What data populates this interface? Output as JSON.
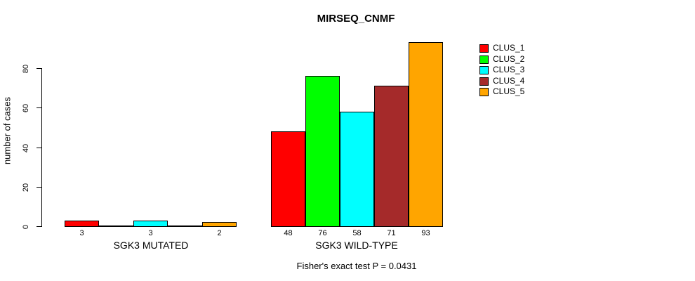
{
  "page": {
    "background": "#ffffff"
  },
  "chart_data": {
    "type": "bar",
    "title": "MIRSEQ_CNMF",
    "ylabel": "number of cases",
    "xlabel": "",
    "annotation": "Fisher's exact test P = 0.0431",
    "series": [
      "CLUS_1",
      "CLUS_2",
      "CLUS_3",
      "CLUS_4",
      "CLUS_5"
    ],
    "series_colors": [
      "#FF0000",
      "#00FF00",
      "#00FFFF",
      "#A52A2A",
      "#FFA500"
    ],
    "categories": [
      "SGK3 MUTATED",
      "SGK3 WILD-TYPE"
    ],
    "groups": [
      {
        "label": "SGK3 MUTATED",
        "values": [
          3,
          0,
          3,
          0,
          2
        ]
      },
      {
        "label": "SGK3 WILD-TYPE",
        "values": [
          48,
          76,
          58,
          71,
          93
        ]
      }
    ],
    "bar_value_labels": [
      [
        "3",
        "",
        "3",
        "",
        "2"
      ],
      [
        "48",
        "76",
        "58",
        "71",
        "93"
      ]
    ],
    "yticks": [
      0,
      20,
      40,
      60,
      80
    ],
    "ylim": [
      0,
      93
    ],
    "grid": false,
    "bar_border_color": "#000000",
    "legend": {
      "position": "right-outside",
      "entries": [
        "CLUS_1",
        "CLUS_2",
        "CLUS_3",
        "CLUS_4",
        "CLUS_5"
      ]
    }
  }
}
